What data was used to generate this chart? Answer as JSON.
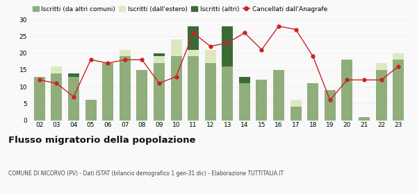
{
  "years": [
    "02",
    "03",
    "04",
    "05",
    "06",
    "07",
    "08",
    "09",
    "10",
    "11",
    "12",
    "13",
    "14",
    "15",
    "16",
    "17",
    "18",
    "19",
    "20",
    "21",
    "22",
    "23"
  ],
  "iscritti_altri_comuni": [
    13,
    14,
    13,
    6,
    17,
    19,
    15,
    17,
    19,
    19,
    17,
    16,
    11,
    12,
    15,
    4,
    11,
    9,
    18,
    1,
    15,
    18
  ],
  "iscritti_estero": [
    0,
    2,
    0,
    0,
    0,
    2,
    0,
    2,
    5,
    2,
    4,
    0,
    0,
    0,
    0,
    2,
    0,
    0,
    0,
    0,
    2,
    2
  ],
  "iscritti_altri": [
    0,
    0,
    1,
    0,
    0,
    0,
    0,
    1,
    0,
    7,
    0,
    12,
    2,
    0,
    0,
    0,
    0,
    0,
    0,
    0,
    0,
    0
  ],
  "cancellati": [
    12,
    11,
    7,
    18,
    17,
    18,
    18,
    11,
    13,
    26,
    22,
    23,
    26,
    21,
    28,
    27,
    19,
    6,
    12,
    12,
    12,
    16
  ],
  "color_altri_comuni": "#8fae7b",
  "color_estero": "#dde8c0",
  "color_altri": "#3a6b35",
  "color_cancellati": "#cc2222",
  "ylim": [
    0,
    30
  ],
  "yticks": [
    0,
    5,
    10,
    15,
    20,
    25,
    30
  ],
  "title": "Flusso migratorio della popolazione",
  "subtitle": "COMUNE DI NICORVO (PV) - Dati ISTAT (bilancio demografico 1 gen-31 dic) - Elaborazione TUTTITALIA.IT",
  "legend_labels": [
    "Iscritti (da altri comuni)",
    "Iscritti (dall'estero)",
    "Iscritti (altri)",
    "Cancellati dall'Anagrafe"
  ],
  "bg_color": "#f9f9f9",
  "grid_color": "#dddddd"
}
